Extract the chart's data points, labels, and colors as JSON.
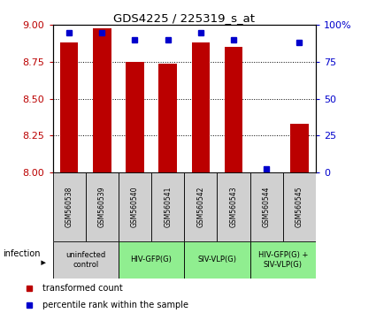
{
  "title": "GDS4225 / 225319_s_at",
  "samples": [
    "GSM560538",
    "GSM560539",
    "GSM560540",
    "GSM560541",
    "GSM560542",
    "GSM560543",
    "GSM560544",
    "GSM560545"
  ],
  "red_values": [
    8.88,
    8.98,
    8.75,
    8.74,
    8.88,
    8.85,
    8.0,
    8.33
  ],
  "blue_values": [
    95,
    95,
    90,
    90,
    95,
    90,
    2,
    88
  ],
  "ylim_left": [
    8.0,
    9.0
  ],
  "ylim_right": [
    0,
    100
  ],
  "yticks_left": [
    8.0,
    8.25,
    8.5,
    8.75,
    9.0
  ],
  "yticks_right": [
    0,
    25,
    50,
    75,
    100
  ],
  "bar_width": 0.55,
  "red_color": "#BB0000",
  "blue_color": "#0000CC",
  "groups": [
    {
      "label": "uninfected\ncontrol",
      "start": 0,
      "end": 1,
      "color": "#d0d0d0"
    },
    {
      "label": "HIV-GFP(G)",
      "start": 2,
      "end": 3,
      "color": "#90EE90"
    },
    {
      "label": "SIV-VLP(G)",
      "start": 4,
      "end": 5,
      "color": "#90EE90"
    },
    {
      "label": "HIV-GFP(G) +\nSIV-VLP(G)",
      "start": 6,
      "end": 7,
      "color": "#90EE90"
    }
  ],
  "legend_red": "transformed count",
  "legend_blue": "percentile rank within the sample",
  "infection_label": "infection",
  "sample_box_color": "#d0d0d0",
  "fig_width": 4.25,
  "fig_height": 3.54,
  "dpi": 100
}
